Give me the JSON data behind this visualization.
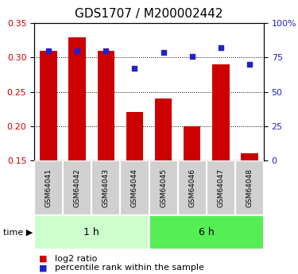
{
  "title": "GDS1707 / M200002442",
  "categories": [
    "GSM64041",
    "GSM64042",
    "GSM64043",
    "GSM64044",
    "GSM64045",
    "GSM64046",
    "GSM64047",
    "GSM64048"
  ],
  "bar_values": [
    0.31,
    0.33,
    0.31,
    0.22,
    0.24,
    0.2,
    0.29,
    0.16
  ],
  "percentile_values": [
    80,
    80,
    80,
    67,
    79,
    76,
    82,
    70
  ],
  "bar_color": "#cc0000",
  "dot_color": "#2222cc",
  "bar_bottom": 0.15,
  "ylim_left": [
    0.15,
    0.35
  ],
  "ylim_right": [
    0,
    100
  ],
  "yticks_left": [
    0.15,
    0.2,
    0.25,
    0.3,
    0.35
  ],
  "yticks_right": [
    0,
    25,
    50,
    75,
    100
  ],
  "ytick_labels_right": [
    "0",
    "25",
    "50",
    "75",
    "100%"
  ],
  "group1_label": "1 h",
  "group2_label": "6 h",
  "group1_count": 4,
  "group2_count": 4,
  "time_label": "time",
  "legend_bar_label": "log2 ratio",
  "legend_dot_label": "percentile rank within the sample",
  "title_fontsize": 11,
  "tick_fontsize": 8,
  "label_fontsize": 6.5,
  "group_fontsize": 9,
  "legend_fontsize": 8,
  "group_bg_color1": "#ccffcc",
  "group_bg_color2": "#55ee55",
  "gray_box_color": "#d0d0d0",
  "left_color": "#cc0000",
  "right_color": "#2222cc"
}
